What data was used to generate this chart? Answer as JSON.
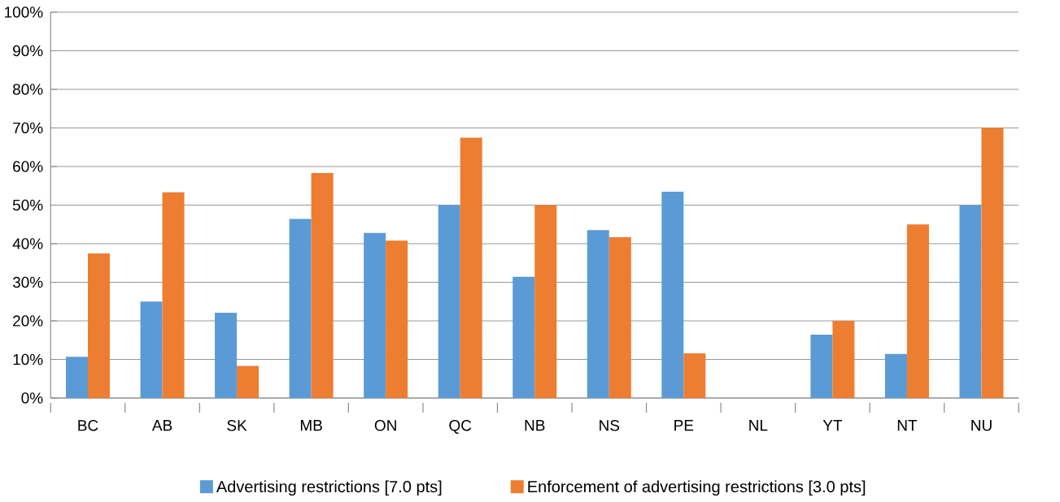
{
  "chart_data": {
    "type": "bar",
    "categories": [
      "BC",
      "AB",
      "SK",
      "MB",
      "ON",
      "QC",
      "NB",
      "NS",
      "PE",
      "NL",
      "YT",
      "NT",
      "NU"
    ],
    "series": [
      {
        "name": "Advertising restrictions [7.0 pts]",
        "color": "#5b9bd5",
        "values": [
          10.7,
          25.0,
          22.1,
          46.4,
          42.8,
          50.0,
          31.4,
          43.5,
          53.5,
          0,
          16.4,
          11.4,
          50.0
        ]
      },
      {
        "name": "Enforcement of advertising restrictions [3.0 pts]",
        "color": "#ed7d31",
        "values": [
          37.5,
          53.3,
          8.3,
          58.3,
          40.8,
          67.5,
          50.0,
          41.7,
          11.6,
          0,
          20.0,
          45.0,
          70.0
        ]
      }
    ],
    "ylim": [
      0,
      100
    ],
    "yticks": [
      {
        "value": 0,
        "label": "0%"
      },
      {
        "value": 10,
        "label": "10%"
      },
      {
        "value": 20,
        "label": "20%"
      },
      {
        "value": 30,
        "label": "30%"
      },
      {
        "value": 40,
        "label": "40%"
      },
      {
        "value": 50,
        "label": "50%"
      },
      {
        "value": 60,
        "label": "60%"
      },
      {
        "value": 70,
        "label": "70%"
      },
      {
        "value": 80,
        "label": "80%"
      },
      {
        "value": 90,
        "label": "90%"
      },
      {
        "value": 100,
        "label": "100%"
      }
    ],
    "grid": "y",
    "legend": "bottom"
  }
}
